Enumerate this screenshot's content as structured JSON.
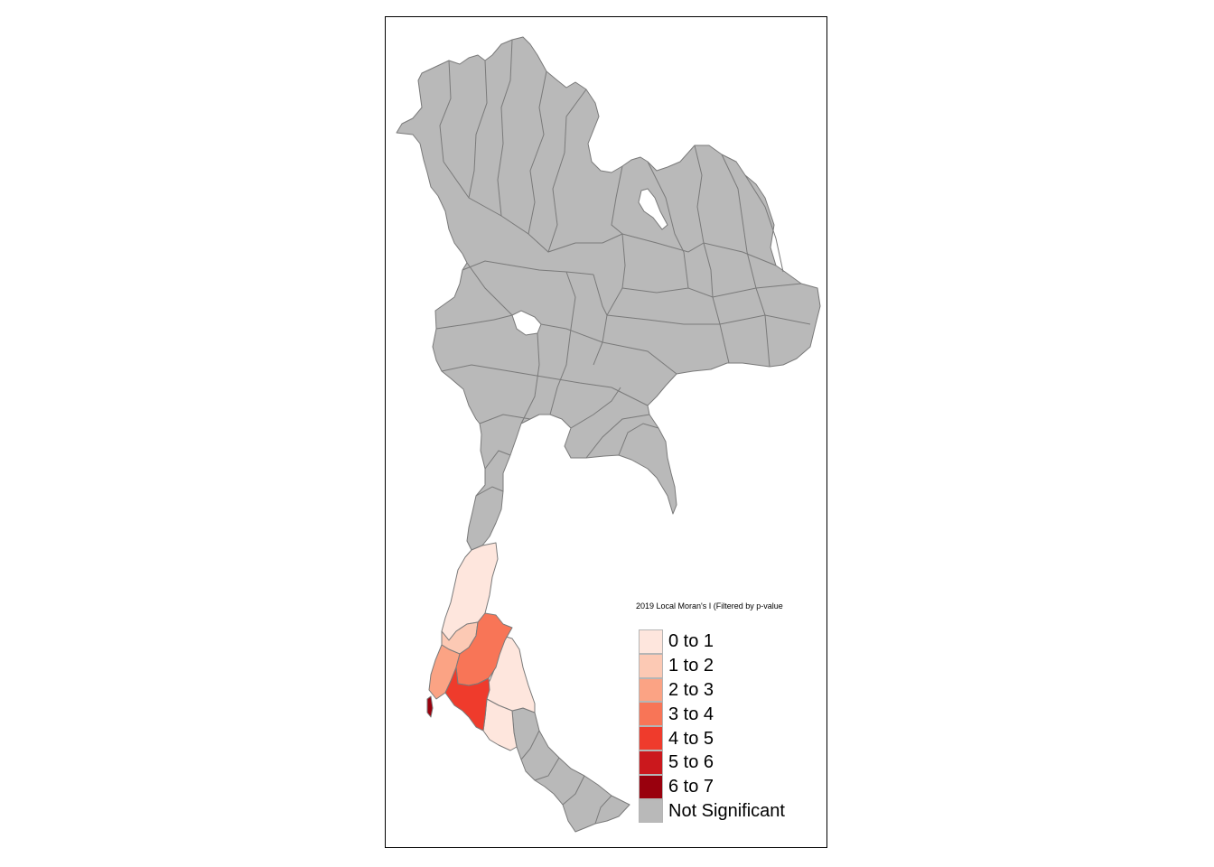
{
  "map": {
    "legend_title": "2019 Local Moran's I (Filtered by p-value",
    "legend": [
      {
        "label": "0 to 1",
        "color": "#fee6dd"
      },
      {
        "label": "1 to 2",
        "color": "#fcc9b4"
      },
      {
        "label": "2 to 3",
        "color": "#fba384"
      },
      {
        "label": "3 to 4",
        "color": "#f87557"
      },
      {
        "label": "4 to 5",
        "color": "#ef3b2c"
      },
      {
        "label": "5 to 6",
        "color": "#cb181d"
      },
      {
        "label": "6 to 7",
        "color": "#99000d"
      },
      {
        "label": "Not Significant",
        "color": "#b9b9b9"
      }
    ],
    "colors": {
      "not_significant": "#b9b9b9",
      "border": "#7a7a7a",
      "frame": "#000000"
    }
  }
}
